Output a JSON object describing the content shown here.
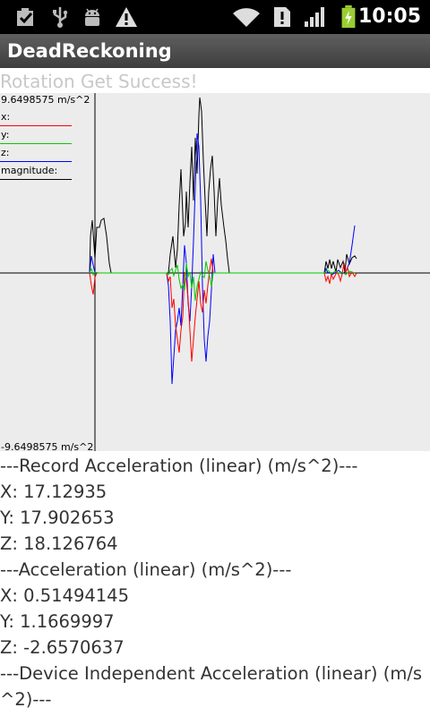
{
  "status_bar": {
    "time": "10:05",
    "icons": [
      "checkbox-notification-icon",
      "usb-icon",
      "android-debug-icon",
      "warning-icon",
      "wifi-icon",
      "sim-alert-icon",
      "signal-icon",
      "battery-charging-icon"
    ]
  },
  "app": {
    "title": "DeadReckoning"
  },
  "status_message": "Rotation Get Success!",
  "graph": {
    "y_max_label": "9.6498575 m/s^2",
    "y_min_label": "-9.6498575 m/s^2",
    "legend": [
      {
        "label": "x:",
        "color": "#ff0000"
      },
      {
        "label": "y:",
        "color": "#00cc00"
      },
      {
        "label": "z:",
        "color": "#0000ff"
      },
      {
        "label": "magnitude:",
        "color": "#000000"
      }
    ]
  },
  "readouts": {
    "record_header": "---Record Acceleration (linear) (m/s^2)---",
    "record_x": "X: 17.12935",
    "record_y": "Y: 17.902653",
    "record_z": "Z: 18.126764",
    "accel_header": "---Acceleration (linear) (m/s^2)---",
    "accel_x": "X: 0.51494145",
    "accel_y": "Y: 1.1669997",
    "accel_z": "Z: -2.6570637",
    "device_header": "---Device Independent Acceleration (linear) (m/s^2)---"
  }
}
